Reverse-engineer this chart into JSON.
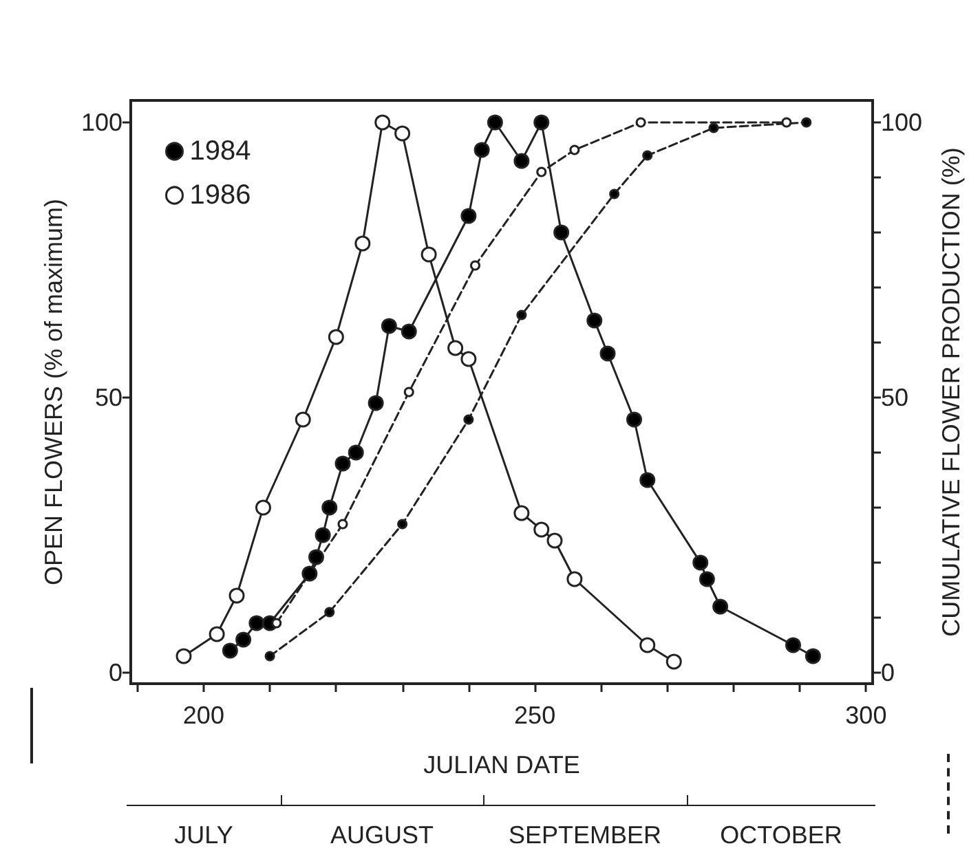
{
  "chart_data": {
    "type": "line",
    "xlabel": "JULIAN DATE",
    "ylabel": "OPEN FLOWERS (% of maximum)",
    "y2label": "CUMULATIVE FLOWER PRODUCTION (%)",
    "xlim": [
      189,
      301
    ],
    "xticks": [
      {
        "value": 190,
        "label": null
      },
      200,
      {
        "value": 210,
        "label": null
      },
      {
        "value": 220,
        "label": null
      },
      {
        "value": 230,
        "label": null
      },
      {
        "value": 240,
        "label": null
      },
      250,
      {
        "value": 260,
        "label": null
      },
      {
        "value": 270,
        "label": null
      },
      {
        "value": 280,
        "label": null
      },
      {
        "value": 290,
        "label": null
      },
      300
    ],
    "annotations": [
      "JULY",
      "AUGUST",
      "SEPTEMBER",
      "OCTOBER"
    ],
    "ylim": [
      -2,
      104
    ],
    "yticks": [
      0,
      50,
      100
    ],
    "y2lim": [
      -2,
      104
    ],
    "y2ticks": [
      0,
      {
        "value": 10,
        "label": null
      },
      {
        "value": 20,
        "label": null
      },
      {
        "value": 30,
        "label": null
      },
      {
        "value": 40,
        "label": null
      },
      50,
      {
        "value": 60,
        "label": null
      },
      {
        "value": 70,
        "label": null
      },
      {
        "value": 80,
        "label": null
      },
      {
        "value": 90,
        "label": null
      },
      100
    ],
    "marker": "circle",
    "legend": "top left",
    "series": [
      {
        "name": "1984",
        "color": "#000000",
        "line_style": "solid",
        "x": [
          204,
          206,
          208,
          210,
          216,
          217,
          218,
          219,
          221,
          223,
          226,
          228,
          231,
          240,
          242,
          244,
          248,
          251,
          254,
          259,
          261,
          265,
          267,
          275,
          276,
          278,
          289,
          292
        ],
        "values": [
          4,
          6,
          9,
          9,
          18,
          21,
          25,
          30,
          38,
          40,
          49,
          63,
          62,
          83,
          95,
          100,
          93,
          100,
          80,
          64,
          58,
          46,
          35,
          20,
          17,
          12,
          5,
          3
        ]
      },
      {
        "name": "1986",
        "color": "#ffffff",
        "line_style": "solid",
        "x": [
          197,
          202,
          205,
          209,
          215,
          220,
          224,
          227,
          230,
          234,
          238,
          240,
          248,
          251,
          253,
          256,
          267,
          271
        ],
        "values": [
          3,
          7,
          14,
          30,
          46,
          61,
          78,
          100,
          98,
          76,
          59,
          57,
          29,
          26,
          24,
          17,
          5,
          2
        ]
      },
      {
        "color": "#000000",
        "line_style": "dashed",
        "axis": "y2",
        "x": [
          210,
          219,
          230,
          240,
          248,
          262,
          267,
          277,
          291
        ],
        "values": [
          3,
          11,
          27,
          46,
          65,
          87,
          94,
          99,
          100
        ]
      },
      {
        "color": "#ffffff",
        "line_style": "dashed",
        "axis": "y2",
        "x": [
          211,
          221,
          231,
          241,
          251,
          256,
          266,
          288
        ],
        "values": [
          9,
          27,
          51,
          74,
          91,
          95,
          100,
          100
        ]
      }
    ]
  }
}
